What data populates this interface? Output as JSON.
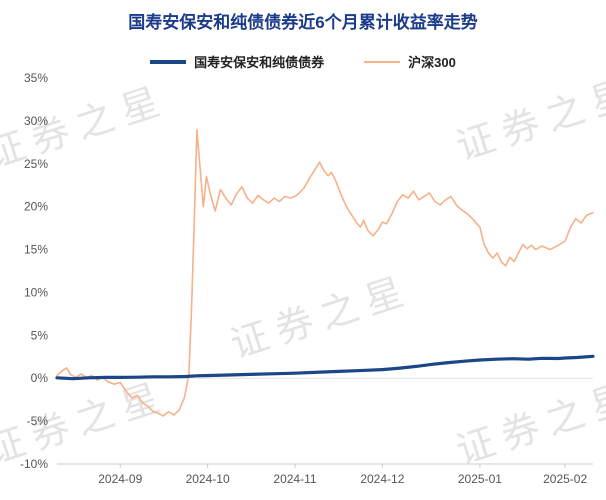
{
  "page": {
    "title": "国寿安保安和纯债债券近6个月累计收益率走势",
    "watermark": "证券之星"
  },
  "colors": {
    "title": "#1a3a8a",
    "fund_line": "#1b4687",
    "index_line": "#f6b189",
    "axis_text": "#555555",
    "zero_line": "#e0e0e0",
    "axis_line": "#cccccc",
    "watermark": "#e4e4e4"
  },
  "chart_data": {
    "type": "line",
    "title": "国寿安保安和纯债债券近6个月累计收益率走势",
    "xlabel": "",
    "ylabel": "",
    "ylim": [
      -10,
      35
    ],
    "y_tick_values": [
      35,
      30,
      25,
      20,
      15,
      10,
      5,
      0,
      -5,
      -10
    ],
    "y_tick_suffix": "%",
    "grid": "zero-line-only",
    "legend_position": "top-center",
    "x_ticks": [
      {
        "label": "2024-09",
        "f": 0.118
      },
      {
        "label": "2024-10",
        "f": 0.281
      },
      {
        "label": "2024-11",
        "f": 0.444
      },
      {
        "label": "2024-12",
        "f": 0.607
      },
      {
        "label": "2025-01",
        "f": 0.789
      },
      {
        "label": "2025-02",
        "f": 0.948
      }
    ],
    "series": [
      {
        "name": "国寿安保安和纯债债券",
        "color": "#1b4687",
        "width": 3.2,
        "points": [
          [
            0,
            0.05
          ],
          [
            0.03,
            -0.05
          ],
          [
            0.06,
            0.05
          ],
          [
            0.09,
            0.1
          ],
          [
            0.118,
            0.1
          ],
          [
            0.15,
            0.12
          ],
          [
            0.18,
            0.16
          ],
          [
            0.21,
            0.16
          ],
          [
            0.24,
            0.2
          ],
          [
            0.26,
            0.28
          ],
          [
            0.286,
            0.32
          ],
          [
            0.32,
            0.38
          ],
          [
            0.36,
            0.45
          ],
          [
            0.4,
            0.52
          ],
          [
            0.444,
            0.58
          ],
          [
            0.48,
            0.68
          ],
          [
            0.52,
            0.78
          ],
          [
            0.56,
            0.88
          ],
          [
            0.607,
            1.0
          ],
          [
            0.64,
            1.18
          ],
          [
            0.67,
            1.38
          ],
          [
            0.7,
            1.62
          ],
          [
            0.73,
            1.82
          ],
          [
            0.76,
            1.98
          ],
          [
            0.789,
            2.12
          ],
          [
            0.82,
            2.22
          ],
          [
            0.85,
            2.28
          ],
          [
            0.88,
            2.22
          ],
          [
            0.905,
            2.32
          ],
          [
            0.935,
            2.3
          ],
          [
            0.948,
            2.36
          ],
          [
            0.97,
            2.42
          ],
          [
            1,
            2.55
          ]
        ]
      },
      {
        "name": "沪深300",
        "color": "#f6b189",
        "width": 1.6,
        "points": [
          [
            0,
            0.3
          ],
          [
            0.01,
            0.9
          ],
          [
            0.018,
            1.2
          ],
          [
            0.026,
            0.4
          ],
          [
            0.035,
            0.1
          ],
          [
            0.045,
            0.5
          ],
          [
            0.055,
            0.1
          ],
          [
            0.065,
            0.3
          ],
          [
            0.075,
            -0.2
          ],
          [
            0.085,
            0.1
          ],
          [
            0.095,
            -0.4
          ],
          [
            0.107,
            -0.7
          ],
          [
            0.118,
            -0.5
          ],
          [
            0.13,
            -1.6
          ],
          [
            0.14,
            -2.3
          ],
          [
            0.15,
            -2.0
          ],
          [
            0.16,
            -2.9
          ],
          [
            0.17,
            -3.3
          ],
          [
            0.18,
            -3.9
          ],
          [
            0.19,
            -4.1
          ],
          [
            0.198,
            -4.4
          ],
          [
            0.208,
            -3.9
          ],
          [
            0.218,
            -4.3
          ],
          [
            0.228,
            -3.7
          ],
          [
            0.238,
            -2.2
          ],
          [
            0.246,
            0.5
          ],
          [
            0.251,
            8.0
          ],
          [
            0.256,
            18.0
          ],
          [
            0.261,
            29.0
          ],
          [
            0.267,
            24.5
          ],
          [
            0.273,
            20.0
          ],
          [
            0.279,
            23.5
          ],
          [
            0.286,
            21.5
          ],
          [
            0.295,
            19.5
          ],
          [
            0.305,
            22.0
          ],
          [
            0.315,
            21.0
          ],
          [
            0.325,
            20.2
          ],
          [
            0.335,
            21.5
          ],
          [
            0.345,
            22.3
          ],
          [
            0.355,
            21.0
          ],
          [
            0.365,
            20.4
          ],
          [
            0.375,
            21.3
          ],
          [
            0.385,
            20.8
          ],
          [
            0.395,
            20.4
          ],
          [
            0.405,
            21.0
          ],
          [
            0.415,
            20.6
          ],
          [
            0.425,
            21.2
          ],
          [
            0.435,
            21.0
          ],
          [
            0.444,
            21.2
          ],
          [
            0.452,
            21.6
          ],
          [
            0.461,
            22.2
          ],
          [
            0.47,
            23.2
          ],
          [
            0.48,
            24.2
          ],
          [
            0.49,
            25.2
          ],
          [
            0.498,
            24.2
          ],
          [
            0.506,
            23.6
          ],
          [
            0.512,
            24.0
          ],
          [
            0.52,
            23.0
          ],
          [
            0.53,
            21.4
          ],
          [
            0.54,
            20.0
          ],
          [
            0.55,
            19.0
          ],
          [
            0.558,
            18.2
          ],
          [
            0.566,
            17.6
          ],
          [
            0.572,
            18.4
          ],
          [
            0.58,
            17.2
          ],
          [
            0.59,
            16.6
          ],
          [
            0.6,
            17.4
          ],
          [
            0.607,
            18.2
          ],
          [
            0.615,
            18.0
          ],
          [
            0.625,
            19.2
          ],
          [
            0.635,
            20.6
          ],
          [
            0.645,
            21.4
          ],
          [
            0.655,
            21.0
          ],
          [
            0.665,
            21.8
          ],
          [
            0.675,
            20.8
          ],
          [
            0.685,
            21.2
          ],
          [
            0.695,
            21.6
          ],
          [
            0.705,
            20.6
          ],
          [
            0.715,
            20.2
          ],
          [
            0.725,
            20.8
          ],
          [
            0.735,
            21.2
          ],
          [
            0.745,
            20.2
          ],
          [
            0.755,
            19.6
          ],
          [
            0.765,
            19.2
          ],
          [
            0.775,
            18.6
          ],
          [
            0.789,
            17.6
          ],
          [
            0.797,
            15.6
          ],
          [
            0.805,
            14.6
          ],
          [
            0.813,
            14.0
          ],
          [
            0.821,
            14.6
          ],
          [
            0.829,
            13.6
          ],
          [
            0.837,
            13.1
          ],
          [
            0.845,
            14.1
          ],
          [
            0.853,
            13.6
          ],
          [
            0.861,
            14.6
          ],
          [
            0.869,
            15.6
          ],
          [
            0.877,
            15.1
          ],
          [
            0.885,
            15.5
          ],
          [
            0.893,
            15.0
          ],
          [
            0.905,
            15.4
          ],
          [
            0.92,
            15.0
          ],
          [
            0.935,
            15.5
          ],
          [
            0.948,
            16.0
          ],
          [
            0.958,
            17.6
          ],
          [
            0.968,
            18.6
          ],
          [
            0.978,
            18.1
          ],
          [
            0.988,
            19.0
          ],
          [
            1,
            19.3
          ]
        ]
      }
    ]
  }
}
